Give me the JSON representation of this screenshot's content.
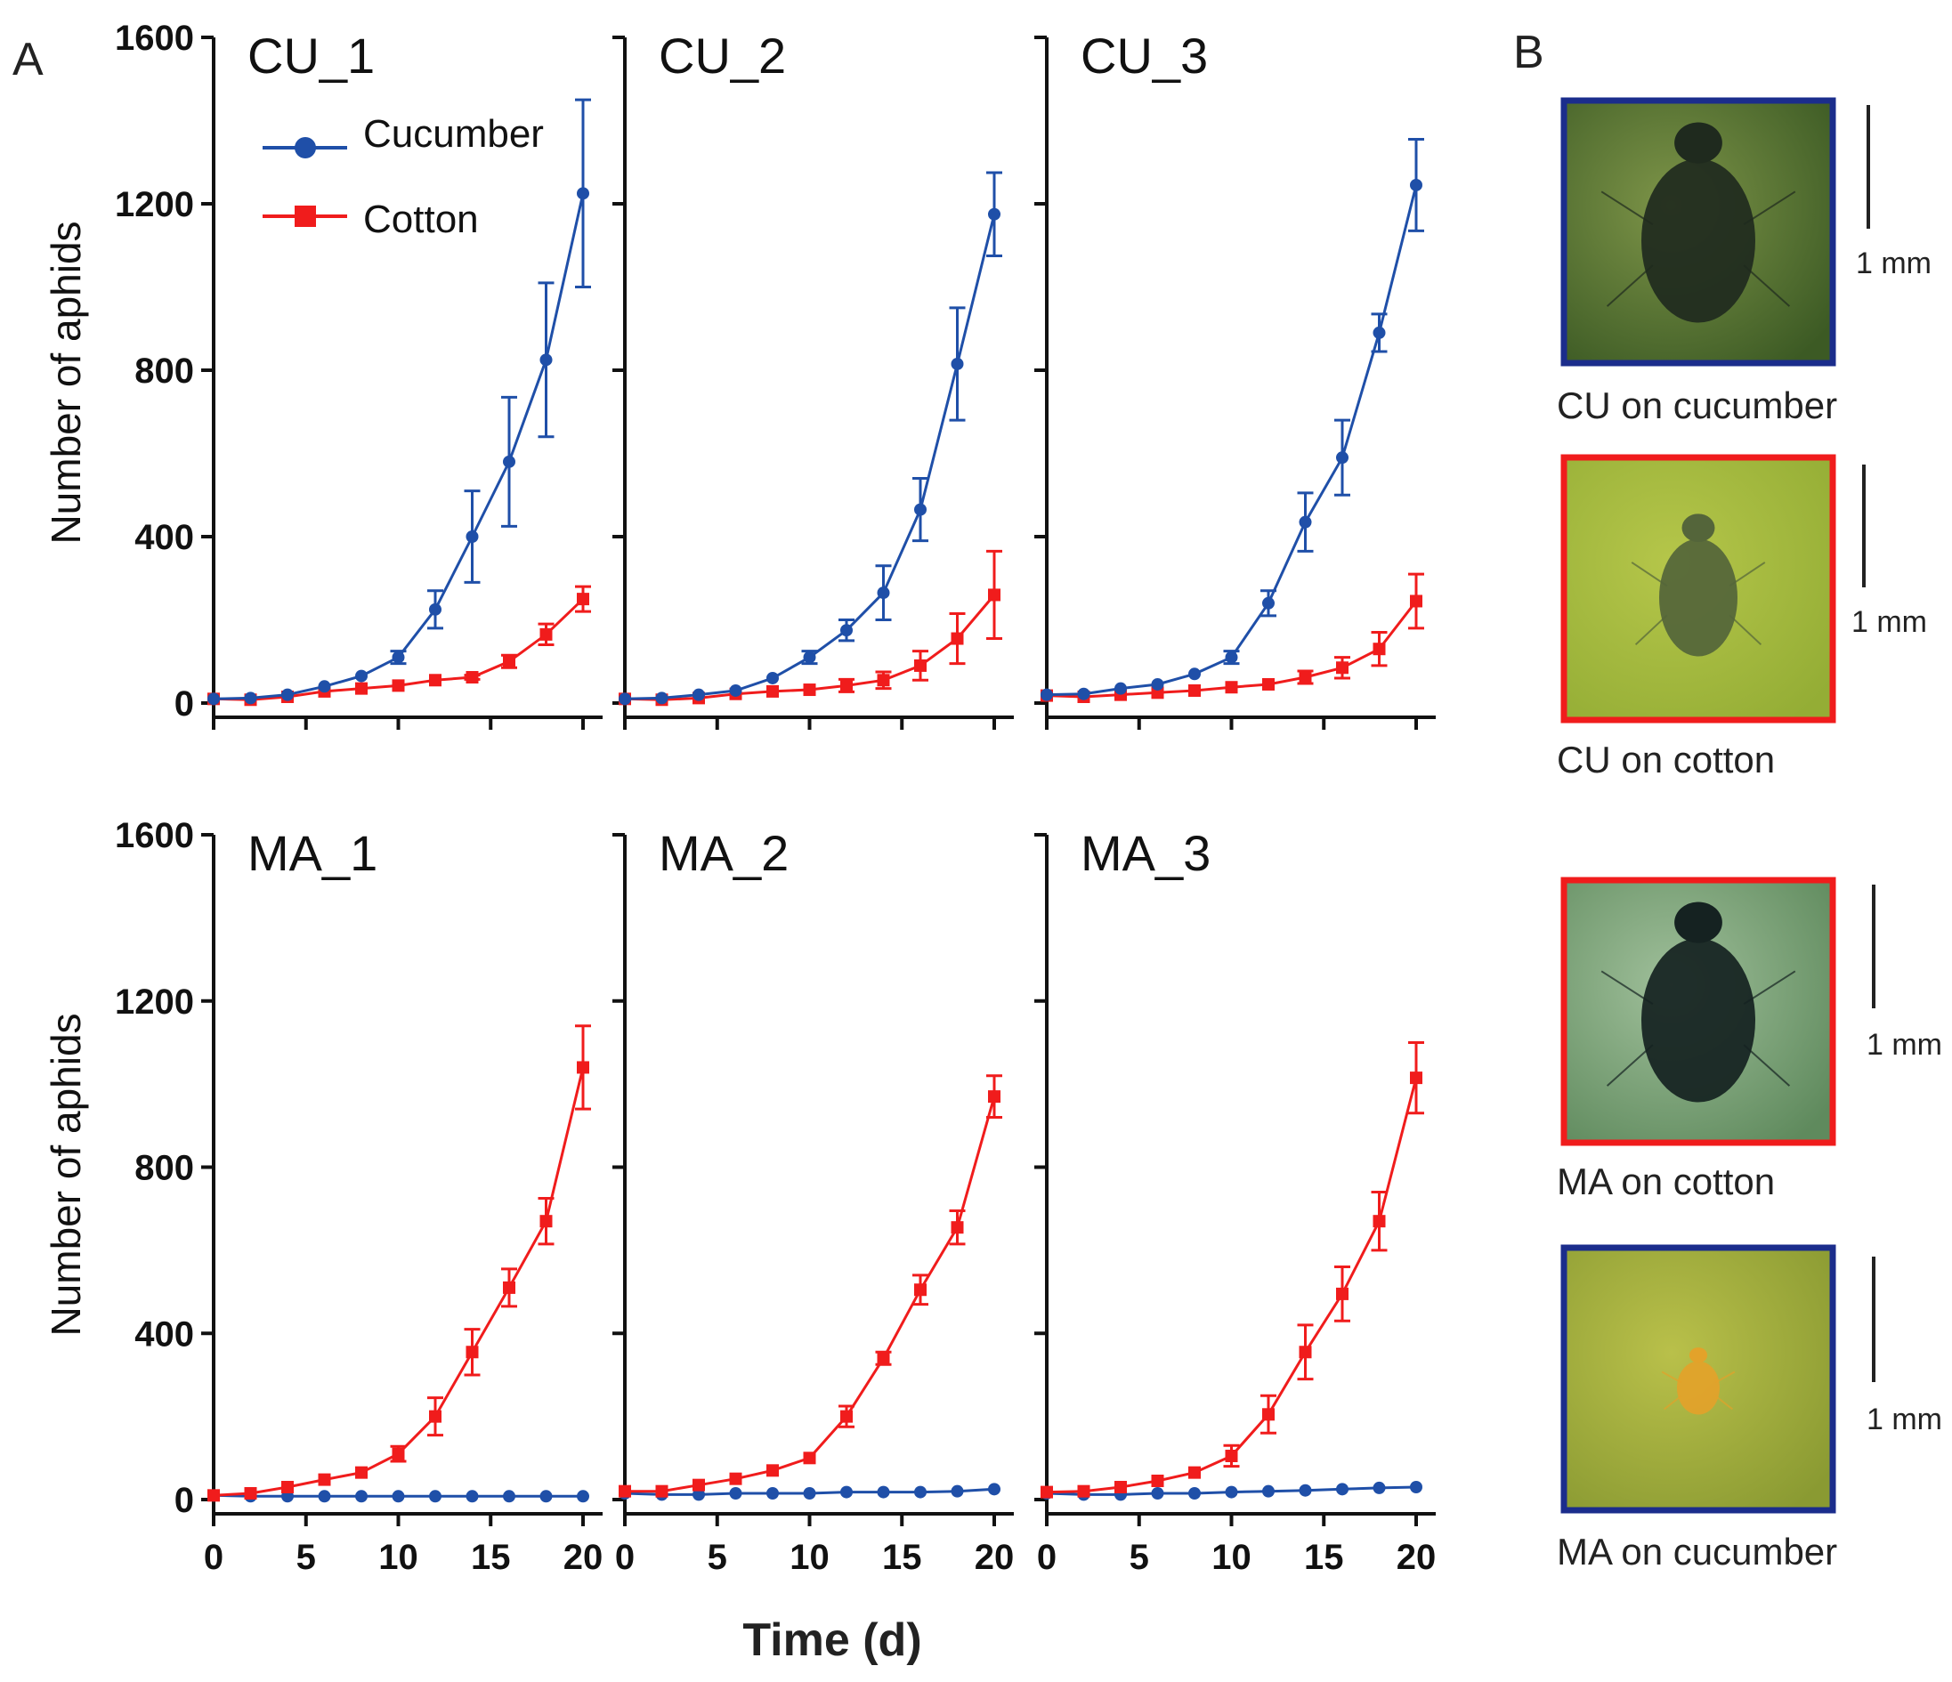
{
  "figure": {
    "panel_a_label": "A",
    "panel_b_label": "B",
    "ylabel": "Number of aphids",
    "xlabel": "Time (d)",
    "legend": {
      "cucumber": "Cucumber",
      "cotton": "Cotton"
    },
    "colors": {
      "cucumber": "#1f4fa8",
      "cotton": "#f01c1c",
      "axis": "#111111"
    }
  },
  "chart_data": [
    {
      "type": "line",
      "title": "CU_1",
      "xlabel": "",
      "ylabel": "Number of aphids",
      "xlim": [
        0,
        20
      ],
      "ylim": [
        0,
        1600
      ],
      "yticks": [
        0,
        400,
        800,
        1200,
        1600
      ],
      "xticks": [
        0,
        5,
        10,
        15,
        20
      ],
      "x": [
        0,
        2,
        4,
        6,
        8,
        10,
        12,
        14,
        16,
        18,
        20
      ],
      "series": [
        {
          "name": "Cucumber",
          "marker": "circle",
          "values": [
            10,
            12,
            20,
            40,
            65,
            110,
            225,
            400,
            580,
            825,
            1225
          ],
          "errors": [
            0,
            0,
            0,
            0,
            0,
            15,
            45,
            110,
            155,
            185,
            225
          ]
        },
        {
          "name": "Cotton",
          "marker": "square",
          "values": [
            10,
            8,
            15,
            28,
            35,
            42,
            55,
            62,
            100,
            165,
            250
          ],
          "errors": [
            0,
            0,
            0,
            0,
            0,
            0,
            0,
            5,
            15,
            25,
            30
          ]
        }
      ]
    },
    {
      "type": "line",
      "title": "CU_2",
      "xlabel": "",
      "ylabel": "",
      "xlim": [
        0,
        20
      ],
      "ylim": [
        0,
        1600
      ],
      "yticks": [
        0,
        400,
        800,
        1200,
        1600
      ],
      "xticks": [
        0,
        5,
        10,
        15,
        20
      ],
      "x": [
        0,
        2,
        4,
        6,
        8,
        10,
        12,
        14,
        16,
        18,
        20
      ],
      "series": [
        {
          "name": "Cucumber",
          "marker": "circle",
          "values": [
            10,
            12,
            20,
            30,
            60,
            110,
            175,
            265,
            465,
            815,
            1175
          ],
          "errors": [
            0,
            0,
            0,
            0,
            0,
            15,
            25,
            65,
            75,
            135,
            100
          ]
        },
        {
          "name": "Cotton",
          "marker": "square",
          "values": [
            10,
            8,
            12,
            22,
            28,
            32,
            42,
            55,
            90,
            155,
            260
          ],
          "errors": [
            0,
            0,
            0,
            0,
            0,
            0,
            15,
            20,
            35,
            60,
            105
          ]
        }
      ]
    },
    {
      "type": "line",
      "title": "CU_3",
      "xlabel": "",
      "ylabel": "",
      "xlim": [
        0,
        20
      ],
      "ylim": [
        0,
        1600
      ],
      "yticks": [
        0,
        400,
        800,
        1200,
        1600
      ],
      "xticks": [
        0,
        5,
        10,
        15,
        20
      ],
      "x": [
        0,
        2,
        4,
        6,
        8,
        10,
        12,
        14,
        16,
        18,
        20
      ],
      "series": [
        {
          "name": "Cucumber",
          "marker": "circle",
          "values": [
            20,
            22,
            35,
            45,
            70,
            110,
            240,
            435,
            590,
            890,
            1245
          ],
          "errors": [
            0,
            0,
            0,
            0,
            0,
            15,
            30,
            70,
            90,
            45,
            110
          ]
        },
        {
          "name": "Cotton",
          "marker": "square",
          "values": [
            18,
            15,
            20,
            25,
            30,
            38,
            45,
            62,
            85,
            130,
            245
          ],
          "errors": [
            0,
            0,
            0,
            0,
            0,
            0,
            0,
            15,
            25,
            40,
            65
          ]
        }
      ]
    },
    {
      "type": "line",
      "title": "MA_1",
      "xlabel": "",
      "ylabel": "Number of aphids",
      "xlim": [
        0,
        20
      ],
      "ylim": [
        0,
        1600
      ],
      "yticks": [
        0,
        400,
        800,
        1200,
        1600
      ],
      "xticks": [
        0,
        5,
        10,
        15,
        20
      ],
      "x": [
        0,
        2,
        4,
        6,
        8,
        10,
        12,
        14,
        16,
        18,
        20
      ],
      "series": [
        {
          "name": "Cucumber",
          "marker": "circle",
          "values": [
            10,
            8,
            8,
            8,
            8,
            8,
            8,
            8,
            8,
            8,
            8
          ],
          "errors": [
            0,
            0,
            0,
            0,
            0,
            0,
            0,
            0,
            0,
            0,
            0
          ]
        },
        {
          "name": "Cotton",
          "marker": "square",
          "values": [
            10,
            15,
            30,
            48,
            65,
            110,
            200,
            355,
            510,
            670,
            1040
          ],
          "errors": [
            0,
            0,
            0,
            0,
            0,
            18,
            45,
            55,
            45,
            55,
            100
          ]
        }
      ]
    },
    {
      "type": "line",
      "title": "MA_2",
      "xlabel": "",
      "ylabel": "",
      "xlim": [
        0,
        20
      ],
      "ylim": [
        0,
        1600
      ],
      "yticks": [
        0,
        400,
        800,
        1200,
        1600
      ],
      "xticks": [
        0,
        5,
        10,
        15,
        20
      ],
      "x": [
        0,
        2,
        4,
        6,
        8,
        10,
        12,
        14,
        16,
        18,
        20
      ],
      "series": [
        {
          "name": "Cucumber",
          "marker": "circle",
          "values": [
            15,
            12,
            12,
            15,
            15,
            15,
            18,
            18,
            18,
            20,
            25
          ],
          "errors": [
            0,
            0,
            0,
            0,
            0,
            0,
            0,
            0,
            0,
            0,
            0
          ]
        },
        {
          "name": "Cotton",
          "marker": "square",
          "values": [
            20,
            20,
            35,
            50,
            70,
            100,
            200,
            340,
            505,
            655,
            970
          ],
          "errors": [
            0,
            0,
            0,
            0,
            0,
            0,
            25,
            15,
            35,
            40,
            50
          ]
        }
      ]
    },
    {
      "type": "line",
      "title": "MA_3",
      "xlabel": "",
      "ylabel": "",
      "xlim": [
        0,
        20
      ],
      "ylim": [
        0,
        1600
      ],
      "yticks": [
        0,
        400,
        800,
        1200,
        1600
      ],
      "xticks": [
        0,
        5,
        10,
        15,
        20
      ],
      "x": [
        0,
        2,
        4,
        6,
        8,
        10,
        12,
        14,
        16,
        18,
        20
      ],
      "series": [
        {
          "name": "Cucumber",
          "marker": "circle",
          "values": [
            15,
            12,
            12,
            15,
            15,
            18,
            20,
            22,
            25,
            28,
            30
          ],
          "errors": [
            0,
            0,
            0,
            0,
            0,
            0,
            0,
            0,
            0,
            0,
            0
          ]
        },
        {
          "name": "Cotton",
          "marker": "square",
          "values": [
            18,
            20,
            30,
            45,
            65,
            105,
            205,
            355,
            495,
            670,
            1015
          ],
          "errors": [
            0,
            0,
            0,
            0,
            0,
            25,
            45,
            65,
            65,
            70,
            85
          ]
        }
      ]
    }
  ],
  "panel_b": [
    {
      "caption": "CU on cucumber",
      "scale": "1 mm",
      "frame_color": "#1b2d8c",
      "photo_colors": [
        "#7d9448",
        "#3c5a24"
      ],
      "aphid_color": "#1f2a1e",
      "aphid_size": "large"
    },
    {
      "caption": "CU on cotton",
      "scale": "1 mm",
      "frame_color": "#f01c1c",
      "photo_colors": [
        "#b5c64a",
        "#94ad35"
      ],
      "aphid_color": "#54653a",
      "aphid_size": "medium"
    },
    {
      "caption": "MA on cotton",
      "scale": "1 mm",
      "frame_color": "#f01c1c",
      "photo_colors": [
        "#9fbf9a",
        "#5f8a5d"
      ],
      "aphid_color": "#152221",
      "aphid_size": "large"
    },
    {
      "caption": "MA on cucumber",
      "scale": "1 mm",
      "frame_color": "#1b2d8c",
      "photo_colors": [
        "#b9c04a",
        "#8a9a32"
      ],
      "aphid_color": "#e3a22a",
      "aphid_size": "small"
    }
  ]
}
